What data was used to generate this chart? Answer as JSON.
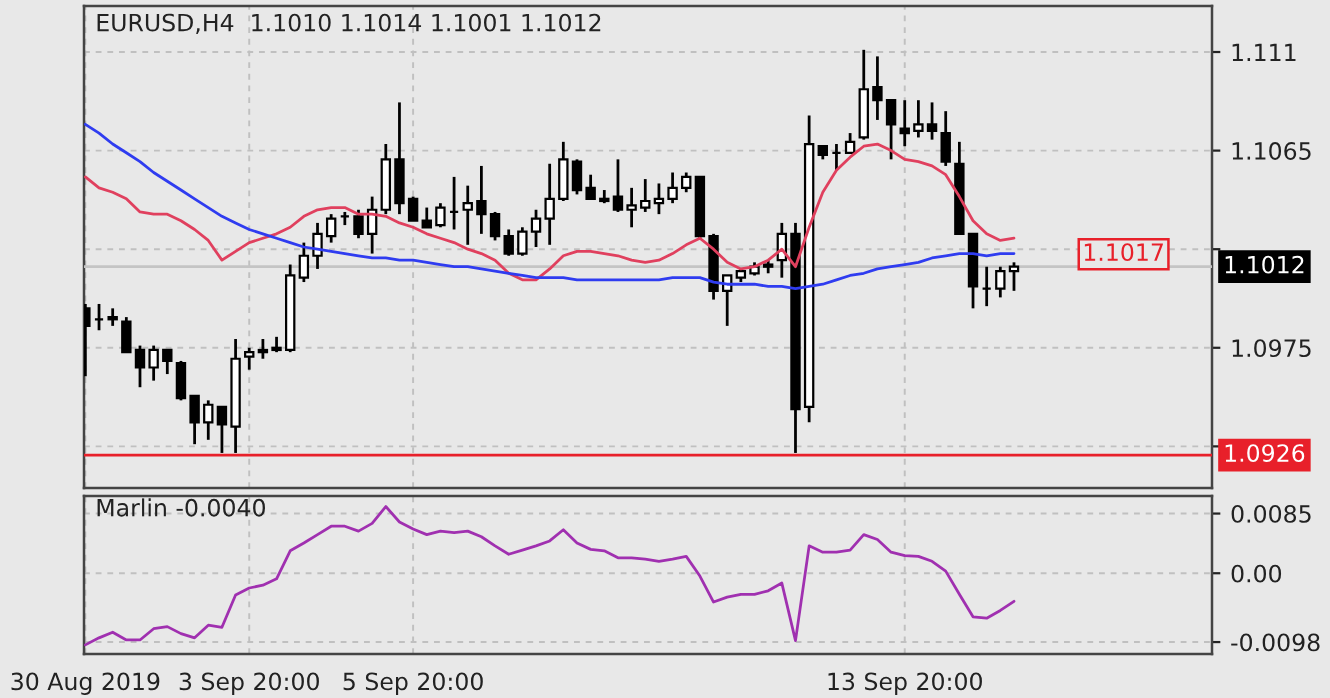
{
  "chart_data": [
    {
      "type": "candlestick",
      "title": "EURUSD,H4  1.1010 1.1014 1.1001 1.1012",
      "categories": [
        null,
        null,
        null,
        null,
        null,
        null,
        null,
        null,
        null,
        null,
        null,
        null,
        null,
        null,
        null,
        null,
        null,
        null,
        null,
        null,
        null,
        null,
        null,
        null,
        null,
        null,
        null,
        null,
        null,
        null,
        null,
        null,
        null,
        null,
        null,
        null,
        null,
        null,
        null,
        null,
        null,
        null,
        null,
        null,
        null,
        null,
        null,
        null,
        null,
        null,
        null,
        null,
        null,
        null,
        null,
        null,
        null,
        null,
        null,
        null,
        null,
        null,
        null,
        null,
        null,
        null,
        null,
        null,
        null
      ],
      "ohlc": [
        [
          1.0993,
          1.0995,
          1.0962,
          1.0985
        ],
        [
          1.0988,
          1.0995,
          1.0983,
          1.0988
        ],
        [
          1.0989,
          1.0993,
          1.0985,
          1.0988
        ],
        [
          1.0987,
          1.0989,
          1.0973,
          1.0973
        ],
        [
          1.0974,
          1.0976,
          1.0957,
          1.0966
        ],
        [
          1.0966,
          1.0976,
          1.096,
          1.0974
        ],
        [
          1.0974,
          1.0974,
          1.0963,
          1.0969
        ],
        [
          1.0968,
          1.0969,
          1.0951,
          1.0952
        ],
        [
          1.0953,
          1.0953,
          1.0931,
          1.0941
        ],
        [
          1.0941,
          1.0951,
          1.0933,
          1.0949
        ],
        [
          1.0948,
          1.0948,
          1.0927,
          1.094
        ],
        [
          1.0939,
          1.0979,
          1.0927,
          1.097
        ],
        [
          1.0971,
          1.0975,
          1.0965,
          1.0973
        ],
        [
          1.0973,
          1.0979,
          1.097,
          1.0974
        ],
        [
          1.0974,
          1.098,
          1.0973,
          1.0975
        ],
        [
          1.0974,
          1.1013,
          1.0973,
          1.1008
        ],
        [
          1.1007,
          1.1023,
          1.1005,
          1.1017
        ],
        [
          1.1017,
          1.1032,
          1.1011,
          1.1027
        ],
        [
          1.1026,
          1.1036,
          1.1023,
          1.1034
        ],
        [
          1.1035,
          1.1037,
          1.1031,
          1.1035
        ],
        [
          1.1035,
          1.1038,
          1.1025,
          1.1027
        ],
        [
          1.1027,
          1.1044,
          1.1018,
          1.1038
        ],
        [
          1.1038,
          1.1068,
          1.1036,
          1.1061
        ],
        [
          1.1061,
          1.1087,
          1.1036,
          1.1041
        ],
        [
          1.1043,
          1.1044,
          1.1033,
          1.1033
        ],
        [
          1.1033,
          1.1039,
          1.103,
          1.103
        ],
        [
          1.1031,
          1.1041,
          1.103,
          1.1039
        ],
        [
          1.1037,
          1.1053,
          1.1029,
          1.1037
        ],
        [
          1.1038,
          1.1049,
          1.1022,
          1.1041
        ],
        [
          1.1042,
          1.1058,
          1.1027,
          1.1036
        ],
        [
          1.1036,
          1.1037,
          1.1024,
          1.1026
        ],
        [
          1.1026,
          1.1029,
          1.1017,
          1.1018
        ],
        [
          1.1018,
          1.103,
          1.1017,
          1.1028
        ],
        [
          1.1028,
          1.1038,
          1.1021,
          1.1034
        ],
        [
          1.1034,
          1.1059,
          1.1022,
          1.1043
        ],
        [
          1.1043,
          1.1069,
          1.1042,
          1.1061
        ],
        [
          1.106,
          1.1061,
          1.1045,
          1.1047
        ],
        [
          1.1048,
          1.1054,
          1.1043,
          1.1043
        ],
        [
          1.1043,
          1.1047,
          1.1041,
          1.1042
        ],
        [
          1.1044,
          1.1061,
          1.1037,
          1.1038
        ],
        [
          1.1038,
          1.1048,
          1.103,
          1.104
        ],
        [
          1.1039,
          1.1052,
          1.1037,
          1.1042
        ],
        [
          1.1041,
          1.105,
          1.1036,
          1.1043
        ],
        [
          1.1043,
          1.1055,
          1.1041,
          1.1048
        ],
        [
          1.1048,
          1.1055,
          1.1046,
          1.1053
        ],
        [
          1.1053,
          1.1053,
          1.1025,
          1.1026
        ],
        [
          1.1026,
          1.1027,
          1.0997,
          1.1001
        ],
        [
          1.1001,
          1.1008,
          1.0985,
          1.1008
        ],
        [
          1.1007,
          1.1011,
          1.1005,
          1.101
        ],
        [
          1.1009,
          1.1014,
          1.1008,
          1.1012
        ],
        [
          1.1012,
          1.1015,
          1.1009,
          1.1013
        ],
        [
          1.1015,
          1.1032,
          1.1007,
          1.1027
        ],
        [
          1.1027,
          1.1032,
          1.0927,
          1.0947
        ],
        [
          1.0948,
          1.1081,
          1.0941,
          1.1068
        ],
        [
          1.1067,
          1.1067,
          1.1061,
          1.1063
        ],
        [
          1.1064,
          1.1068,
          1.1056,
          1.1064
        ],
        [
          1.1064,
          1.1073,
          1.1064,
          1.1069
        ],
        [
          1.1071,
          1.1111,
          1.107,
          1.1093
        ],
        [
          1.1094,
          1.1108,
          1.1079,
          1.1088
        ],
        [
          1.1088,
          1.1088,
          1.1061,
          1.1077
        ],
        [
          1.1075,
          1.1088,
          1.1067,
          1.1073
        ],
        [
          1.1074,
          1.1088,
          1.1071,
          1.1077
        ],
        [
          1.1077,
          1.1087,
          1.107,
          1.1074
        ],
        [
          1.1073,
          1.1083,
          1.1058,
          1.106
        ],
        [
          1.1059,
          1.1069,
          1.1027,
          1.1027
        ],
        [
          1.1027,
          1.1027,
          1.0993,
          1.1003
        ],
        [
          1.1002,
          1.1012,
          1.0994,
          1.1002
        ],
        [
          1.1002,
          1.1012,
          1.0998,
          1.101
        ],
        [
          1.101,
          1.1014,
          1.1001,
          1.1012
        ]
      ],
      "series": [
        {
          "type": "line",
          "color": "#e0405e",
          "values": [
            1.1053,
            1.1048,
            1.1046,
            1.1043,
            1.1037,
            1.1036,
            1.1036,
            1.1033,
            1.1029,
            1.1024,
            1.1015,
            1.1019,
            1.1023,
            1.1025,
            1.1027,
            1.103,
            1.1035,
            1.1038,
            1.1039,
            1.1039,
            1.1036,
            1.1036,
            1.1035,
            1.1032,
            1.103,
            1.1027,
            1.1025,
            1.1023,
            1.102,
            1.1018,
            1.1015,
            1.1009,
            1.1006,
            1.1006,
            1.1011,
            1.1017,
            1.1019,
            1.1019,
            1.1018,
            1.1017,
            1.1015,
            1.1014,
            1.1015,
            1.1018,
            1.1022,
            1.1025,
            1.102,
            1.1014,
            1.1011,
            1.1012,
            1.1015,
            1.102,
            1.1012,
            1.103,
            1.1046,
            1.1056,
            1.1062,
            1.1067,
            1.1068,
            1.1065,
            1.1061,
            1.106,
            1.1058,
            1.1054,
            1.1044,
            1.1033,
            1.1027,
            1.1024,
            1.1025
          ]
        },
        {
          "type": "line",
          "color": "#2f3cf0",
          "values": [
            1.1077,
            1.1073,
            1.1068,
            1.1064,
            1.106,
            1.1055,
            1.1051,
            1.1047,
            1.1043,
            1.1039,
            1.1035,
            1.1032,
            1.1029,
            1.1027,
            1.1025,
            1.1023,
            1.1021,
            1.102,
            1.1019,
            1.1018,
            1.1017,
            1.1016,
            1.1016,
            1.1015,
            1.1015,
            1.1014,
            1.1013,
            1.1012,
            1.1012,
            1.1011,
            1.101,
            1.1009,
            1.1008,
            1.1007,
            1.1007,
            1.1007,
            1.1006,
            1.1006,
            1.1006,
            1.1006,
            1.1006,
            1.1006,
            1.1006,
            1.1007,
            1.1007,
            1.1007,
            1.1005,
            1.1004,
            1.1004,
            1.1004,
            1.1003,
            1.1003,
            1.1002,
            1.1003,
            1.1004,
            1.1006,
            1.1008,
            1.1009,
            1.1011,
            1.1012,
            1.1013,
            1.1014,
            1.1016,
            1.1017,
            1.1018,
            1.1018,
            1.1017,
            1.1018,
            1.1018
          ]
        }
      ],
      "ylim": [
        1.0911,
        1.1131
      ],
      "yticks": [
        1.111,
        1.1065,
        {
          "value": 1.102,
          "label": null
        },
        1.0975,
        {
          "value": 1.093,
          "label": null
        }
      ],
      "ref_lines": [
        {
          "axis": "y",
          "value": 1.0926,
          "label": "1.0926",
          "color": "#e8202a"
        },
        {
          "axis": "y",
          "value": 1.1012,
          "label": "1.1012",
          "color": "#c4c4c4"
        }
      ],
      "annotations": [
        "1.1017"
      ],
      "tick_labels": "y",
      "grid": true
    },
    {
      "type": "line",
      "title": "Marlin -0.0040",
      "categories": [
        "30 Aug 2019",
        null,
        null,
        null,
        null,
        null,
        null,
        null,
        null,
        null,
        null,
        null,
        "3 Sep 20:00",
        null,
        null,
        null,
        null,
        null,
        null,
        null,
        null,
        null,
        null,
        null,
        "5 Sep 20:00",
        null,
        null,
        null,
        null,
        null,
        null,
        null,
        null,
        null,
        null,
        null,
        null,
        null,
        null,
        null,
        null,
        null,
        null,
        null,
        null,
        null,
        null,
        null,
        null,
        null,
        null,
        null,
        null,
        null,
        null,
        null,
        null,
        null,
        null,
        null,
        "13 Sep 20:00",
        null,
        null,
        null,
        null,
        null,
        null,
        null,
        null
      ],
      "series": [
        {
          "color": "#a030b0",
          "values": [
            -0.0102,
            -0.0092,
            -0.0084,
            -0.0095,
            -0.0095,
            -0.0079,
            -0.0076,
            -0.0086,
            -0.0092,
            -0.0074,
            -0.0077,
            -0.0031,
            -0.0021,
            -0.0017,
            -0.0008,
            0.0032,
            0.0043,
            0.0055,
            0.0067,
            0.0067,
            0.006,
            0.0071,
            0.0095,
            0.0073,
            0.0063,
            0.0055,
            0.006,
            0.0058,
            0.006,
            0.0052,
            0.0039,
            0.0027,
            0.0033,
            0.0039,
            0.0046,
            0.0062,
            0.0043,
            0.0034,
            0.0032,
            0.0022,
            0.0022,
            0.002,
            0.0017,
            0.002,
            0.0024,
            -0.0004,
            -0.0041,
            -0.0034,
            -0.003,
            -0.003,
            -0.0025,
            -0.0014,
            -0.0096,
            0.0039,
            0.003,
            0.003,
            0.0033,
            0.0055,
            0.0048,
            0.003,
            0.0025,
            0.0024,
            0.0017,
            0.0003,
            -0.003,
            -0.0062,
            -0.0064,
            -0.0053,
            -0.004
          ]
        }
      ],
      "ylim": [
        -0.0115,
        0.011
      ],
      "yticks": [
        0.0085,
        {
          "value": 0,
          "label": "0.00"
        },
        -0.0098
      ],
      "grid": true
    }
  ]
}
